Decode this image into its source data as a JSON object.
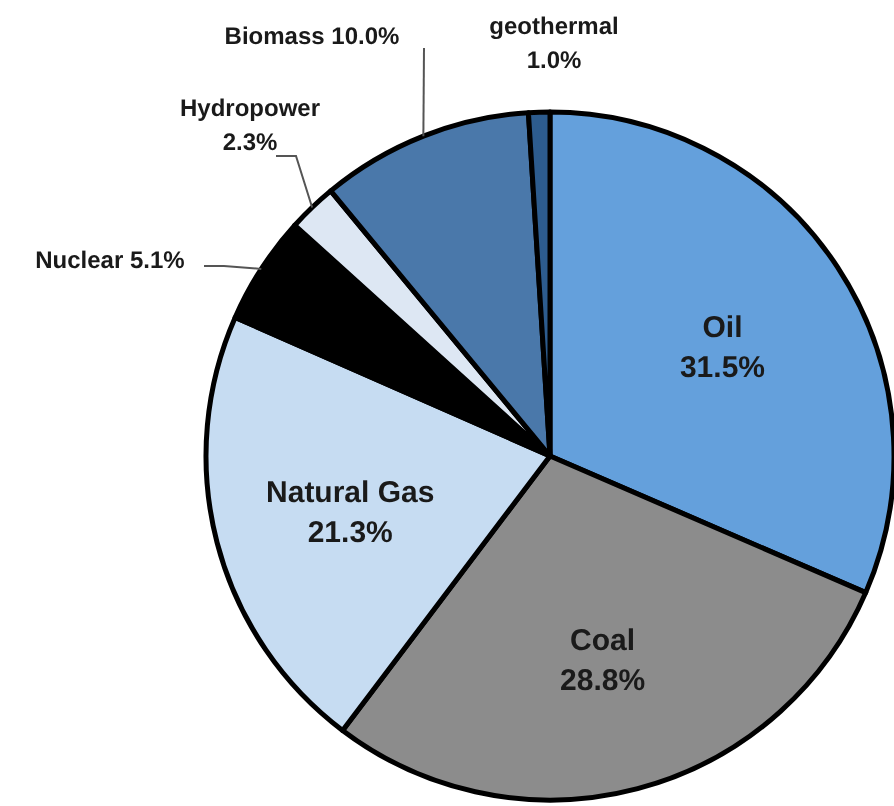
{
  "chart_data": {
    "type": "pie",
    "categories": [
      "Oil",
      "Coal",
      "Natural Gas",
      "Nuclear",
      "Hydropower",
      "Biomass",
      "geothermal"
    ],
    "values": [
      31.5,
      28.8,
      21.3,
      5.1,
      2.3,
      10.0,
      1.0
    ],
    "value_labels": [
      "31.5%",
      "28.8%",
      "21.3%",
      "5.1%",
      "2.3%",
      "10.0%",
      "1.0%"
    ],
    "colors": [
      "#64a0dc",
      "#8c8c8c",
      "#c6dcf2",
      "#000000",
      "#dde7f3",
      "#4a78aa",
      "#2d5c8e"
    ]
  }
}
